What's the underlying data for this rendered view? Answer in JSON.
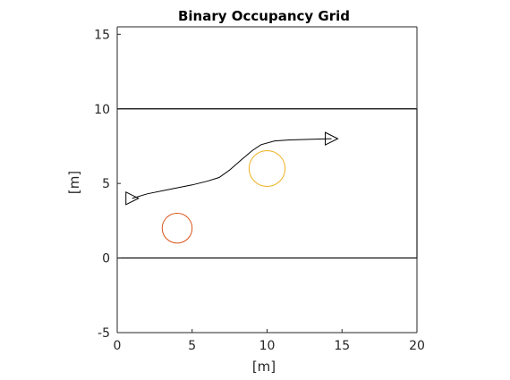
{
  "chart_data": {
    "type": "line",
    "title": "Binary Occupancy Grid",
    "xlabel": "[m]",
    "ylabel": "[m]",
    "xlim": [
      0,
      20
    ],
    "ylim": [
      -5,
      15.5
    ],
    "xticks": [
      0,
      5,
      10,
      15,
      20
    ],
    "yticks": [
      -5,
      0,
      5,
      10,
      15
    ],
    "xtick_labels": [
      "0",
      "5",
      "10",
      "15",
      "20"
    ],
    "ytick_labels": [
      "-5",
      "0",
      "5",
      "10",
      "15"
    ],
    "grid": false,
    "walls": [
      {
        "x": [
          0,
          20
        ],
        "y": [
          10,
          10
        ]
      },
      {
        "x": [
          0,
          20
        ],
        "y": [
          0,
          0
        ]
      },
      {
        "x": [
          20,
          20
        ],
        "y": [
          0,
          10
        ]
      }
    ],
    "path": {
      "x": [
        1.0,
        2.0,
        3.5,
        5.0,
        6.0,
        6.8,
        7.5,
        8.3,
        9.0,
        9.6,
        10.5,
        11.5,
        12.5,
        13.5,
        14.3
      ],
      "y": [
        4.0,
        4.3,
        4.6,
        4.9,
        5.15,
        5.4,
        5.9,
        6.6,
        7.2,
        7.6,
        7.85,
        7.92,
        7.95,
        7.98,
        8.0
      ]
    },
    "start_marker": {
      "x": 1.0,
      "y": 4.0
    },
    "end_marker": {
      "x": 14.3,
      "y": 8.0
    },
    "obstacles": [
      {
        "cx": 4.0,
        "cy": 2.0,
        "r": 1.0,
        "color": "#d95319"
      },
      {
        "cx": 10.0,
        "cy": 6.0,
        "r": 1.2,
        "color": "#edb120"
      }
    ],
    "colors": {
      "walls": "#000000",
      "path": "#000000",
      "axes": "#262626"
    }
  }
}
